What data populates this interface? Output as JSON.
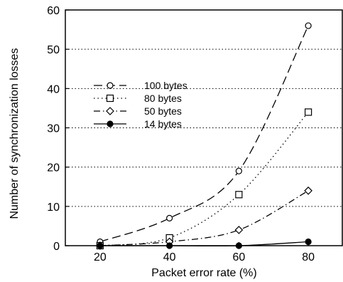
{
  "chart_data": {
    "type": "line",
    "title": "",
    "xlabel": "Packet error rate (%)",
    "ylabel": "Number of synchronization losses",
    "x": [
      20,
      40,
      60,
      80
    ],
    "xlim": [
      10,
      90
    ],
    "ylim": [
      0,
      60
    ],
    "xticks": [
      "20",
      "40",
      "60",
      "80"
    ],
    "yticks": [
      "0",
      "10",
      "20",
      "30",
      "40",
      "50",
      "60"
    ],
    "grid": "horizontal dotted",
    "legend_position": "upper-left",
    "series": [
      {
        "name": "100 bytes",
        "values": [
          1,
          7,
          19,
          56
        ],
        "marker": "open-circle",
        "line": "dashed"
      },
      {
        "name": "80 bytes",
        "values": [
          0,
          2,
          13,
          34
        ],
        "marker": "open-square",
        "line": "dotted"
      },
      {
        "name": "50 bytes",
        "values": [
          0,
          1,
          4,
          14
        ],
        "marker": "open-diamond",
        "line": "dash-dot"
      },
      {
        "name": "14 bytes",
        "values": [
          0,
          0,
          0,
          1
        ],
        "marker": "filled-circle",
        "line": "solid"
      }
    ]
  }
}
